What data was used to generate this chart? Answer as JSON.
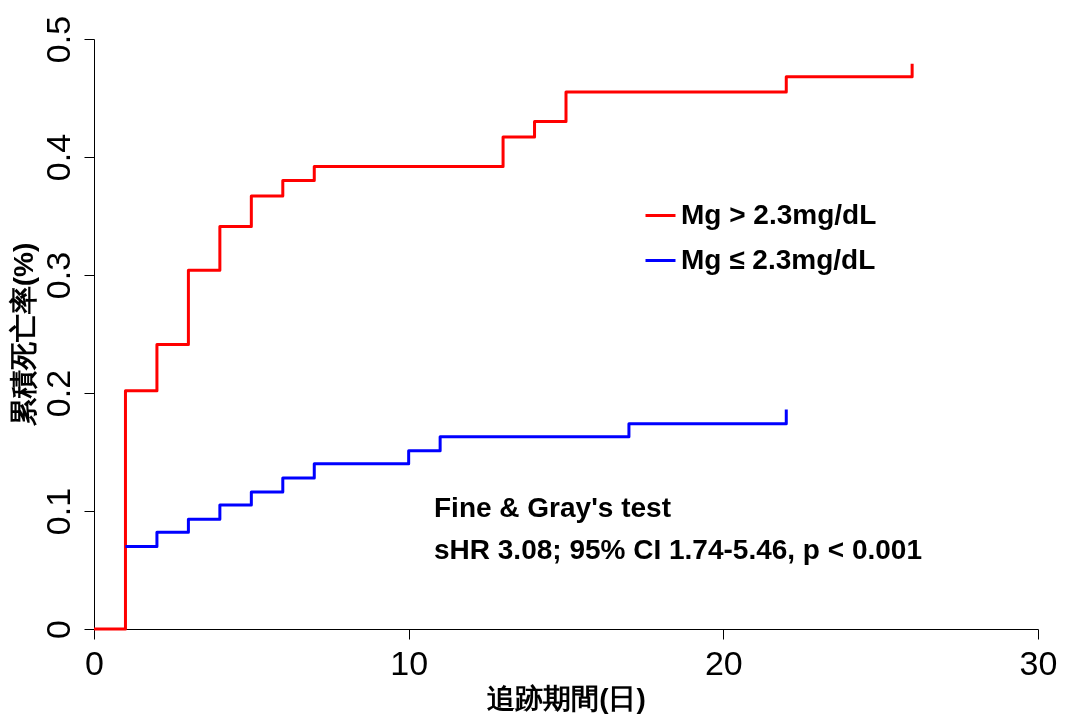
{
  "chart_data": {
    "type": "step",
    "xlabel": "追跡期間(日)",
    "ylabel": "累積死亡率(%)",
    "xlim": [
      0,
      30
    ],
    "xticks": [
      0,
      10,
      20,
      30
    ],
    "ylim": [
      0,
      0.5
    ],
    "yticks": [
      0,
      0.1,
      0.2,
      0.3,
      0.4,
      0.5
    ],
    "grid": false,
    "legend": "top right",
    "line_style": "solid",
    "marker": "none",
    "series": [
      {
        "name": "Mg > 2.3mg/dL",
        "color": "#ff0000",
        "x": [
          0,
          1,
          2,
          3,
          4,
          5,
          6,
          7,
          13,
          14,
          15,
          22,
          26,
          26
        ],
        "values": [
          0,
          0.202,
          0.241,
          0.304,
          0.341,
          0.367,
          0.38,
          0.392,
          0.417,
          0.43,
          0.455,
          0.468,
          0.468,
          0.479
        ]
      },
      {
        "name": "Mg ≤ 2.3mg/dL",
        "color": "#0000ff",
        "x": [
          1,
          2,
          3,
          4,
          5,
          6,
          7,
          10,
          11,
          17,
          22,
          22
        ],
        "values": [
          0.07,
          0.082,
          0.093,
          0.105,
          0.116,
          0.128,
          0.14,
          0.151,
          0.163,
          0.174,
          0.174,
          0.186
        ]
      }
    ],
    "annotations": [
      "Fine & Gray's test",
      "sHR 3.08; 95% CI 1.74-5.46, p < 0.001"
    ]
  }
}
